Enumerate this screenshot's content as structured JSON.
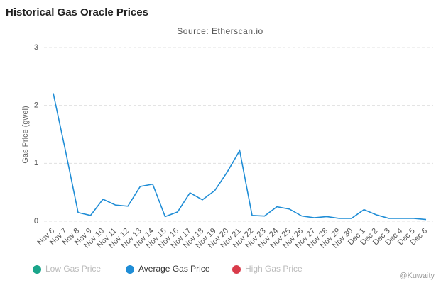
{
  "chart_data": {
    "type": "line",
    "title": "Historical Gas Oracle Prices",
    "subtitle": "Source: Etherscan.io",
    "y_label": "Gas Price (gwei)",
    "categories": [
      "Nov 6",
      "Nov 7",
      "Nov 8",
      "Nov 9",
      "Nov 10",
      "Nov 11",
      "Nov 12",
      "Nov 13",
      "Nov 14",
      "Nov 15",
      "Nov 16",
      "Nov 17",
      "Nov 18",
      "Nov 19",
      "Nov 20",
      "Nov 21",
      "Nov 22",
      "Nov 23",
      "Nov 24",
      "Nov 25",
      "Nov 26",
      "Nov 27",
      "Nov 28",
      "Nov 29",
      "Nov 30",
      "Dec 1",
      "Dec 2",
      "Dec 3",
      "Dec 4",
      "Dec 5",
      "Dec 6"
    ],
    "series": [
      {
        "name": "Average Gas Price",
        "color": "#1f8dd6",
        "values": [
          2.21,
          1.2,
          0.15,
          0.1,
          0.38,
          0.28,
          0.26,
          0.6,
          0.64,
          0.08,
          0.16,
          0.49,
          0.37,
          0.53,
          0.85,
          1.22,
          0.1,
          0.09,
          0.25,
          0.21,
          0.09,
          0.06,
          0.08,
          0.05,
          0.05,
          0.2,
          0.11,
          0.05,
          0.05,
          0.05,
          0.03
        ]
      }
    ],
    "legend": [
      {
        "name": "Low Gas Price",
        "color": "#1aa58a",
        "hidden": true
      },
      {
        "name": "Average Gas Price",
        "color": "#1f8dd6",
        "hidden": false
      },
      {
        "name": "High Gas Price",
        "color": "#d93b4a",
        "hidden": true
      }
    ],
    "ylim": [
      0,
      3
    ],
    "yticks": [
      0,
      1,
      2,
      3
    ],
    "grid": true,
    "watermark": "@Kuwaity"
  }
}
